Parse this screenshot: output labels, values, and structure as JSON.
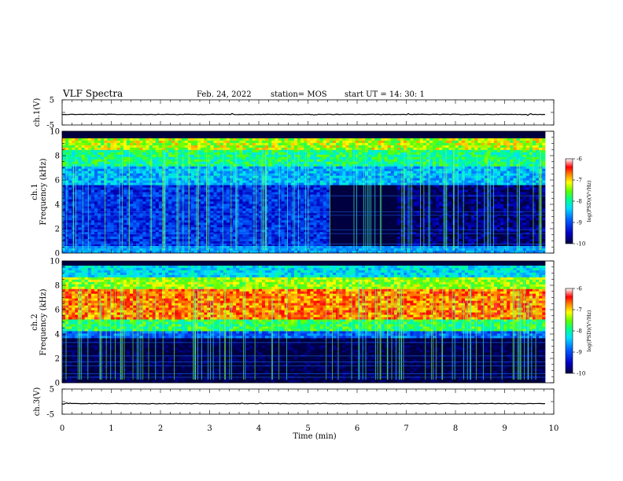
{
  "header": {
    "title": "VLF Spectra",
    "date": "Feb. 24, 2022",
    "station": "station= MOS",
    "start_ut": "start  UT  =   14: 30: 1"
  },
  "chart_data": {
    "type": "heatmap",
    "x": {
      "label": "Time  (min)",
      "range": [
        0,
        10
      ],
      "ticks": [
        0,
        1,
        2,
        3,
        4,
        5,
        6,
        7,
        8,
        9,
        10
      ],
      "data_end": 9.83
    },
    "panels": [
      {
        "id": "ch1-voltage",
        "kind": "line",
        "ylabel": "ch.1(V)",
        "ylim": [
          -5,
          5
        ],
        "yticks": [
          "5",
          "-5"
        ],
        "series_level": -0.8
      },
      {
        "id": "ch1-spectrogram",
        "kind": "spectrogram",
        "ylabel_line1": "ch.1",
        "ylabel_line2": "Frequency (kHz)",
        "ylim": [
          0,
          10
        ],
        "yticks": [
          "0",
          "2",
          "4",
          "6",
          "8",
          "10"
        ],
        "colorbar": {
          "label": "log(PSD)(V²/Hz)",
          "ticks": [
            "-6",
            "-7",
            "-8",
            "-9",
            "-10"
          ],
          "range": [
            -10,
            -6
          ]
        }
      },
      {
        "id": "ch2-spectrogram",
        "kind": "spectrogram",
        "ylabel_line1": "ch.2",
        "ylabel_line2": "Frequency (kHz)",
        "ylim": [
          0,
          10
        ],
        "yticks": [
          "0",
          "2",
          "4",
          "6",
          "8",
          "10"
        ],
        "colorbar": {
          "label": "log(PSD)(V²/Hz)",
          "ticks": [
            "-6",
            "-7",
            "-8",
            "-9",
            "-10"
          ],
          "range": [
            -10,
            -6
          ]
        }
      },
      {
        "id": "ch3-voltage",
        "kind": "line",
        "ylabel": "ch.3(V)",
        "ylim": [
          -5,
          5
        ],
        "yticks": [
          "5",
          "-5"
        ],
        "series_level": -0.8
      }
    ],
    "colormap": [
      "#000080",
      "#0000ff",
      "#00a0ff",
      "#00ffff",
      "#00ff80",
      "#80ff00",
      "#ffff00",
      "#ff8000",
      "#ff0000",
      "#ffffff"
    ]
  }
}
